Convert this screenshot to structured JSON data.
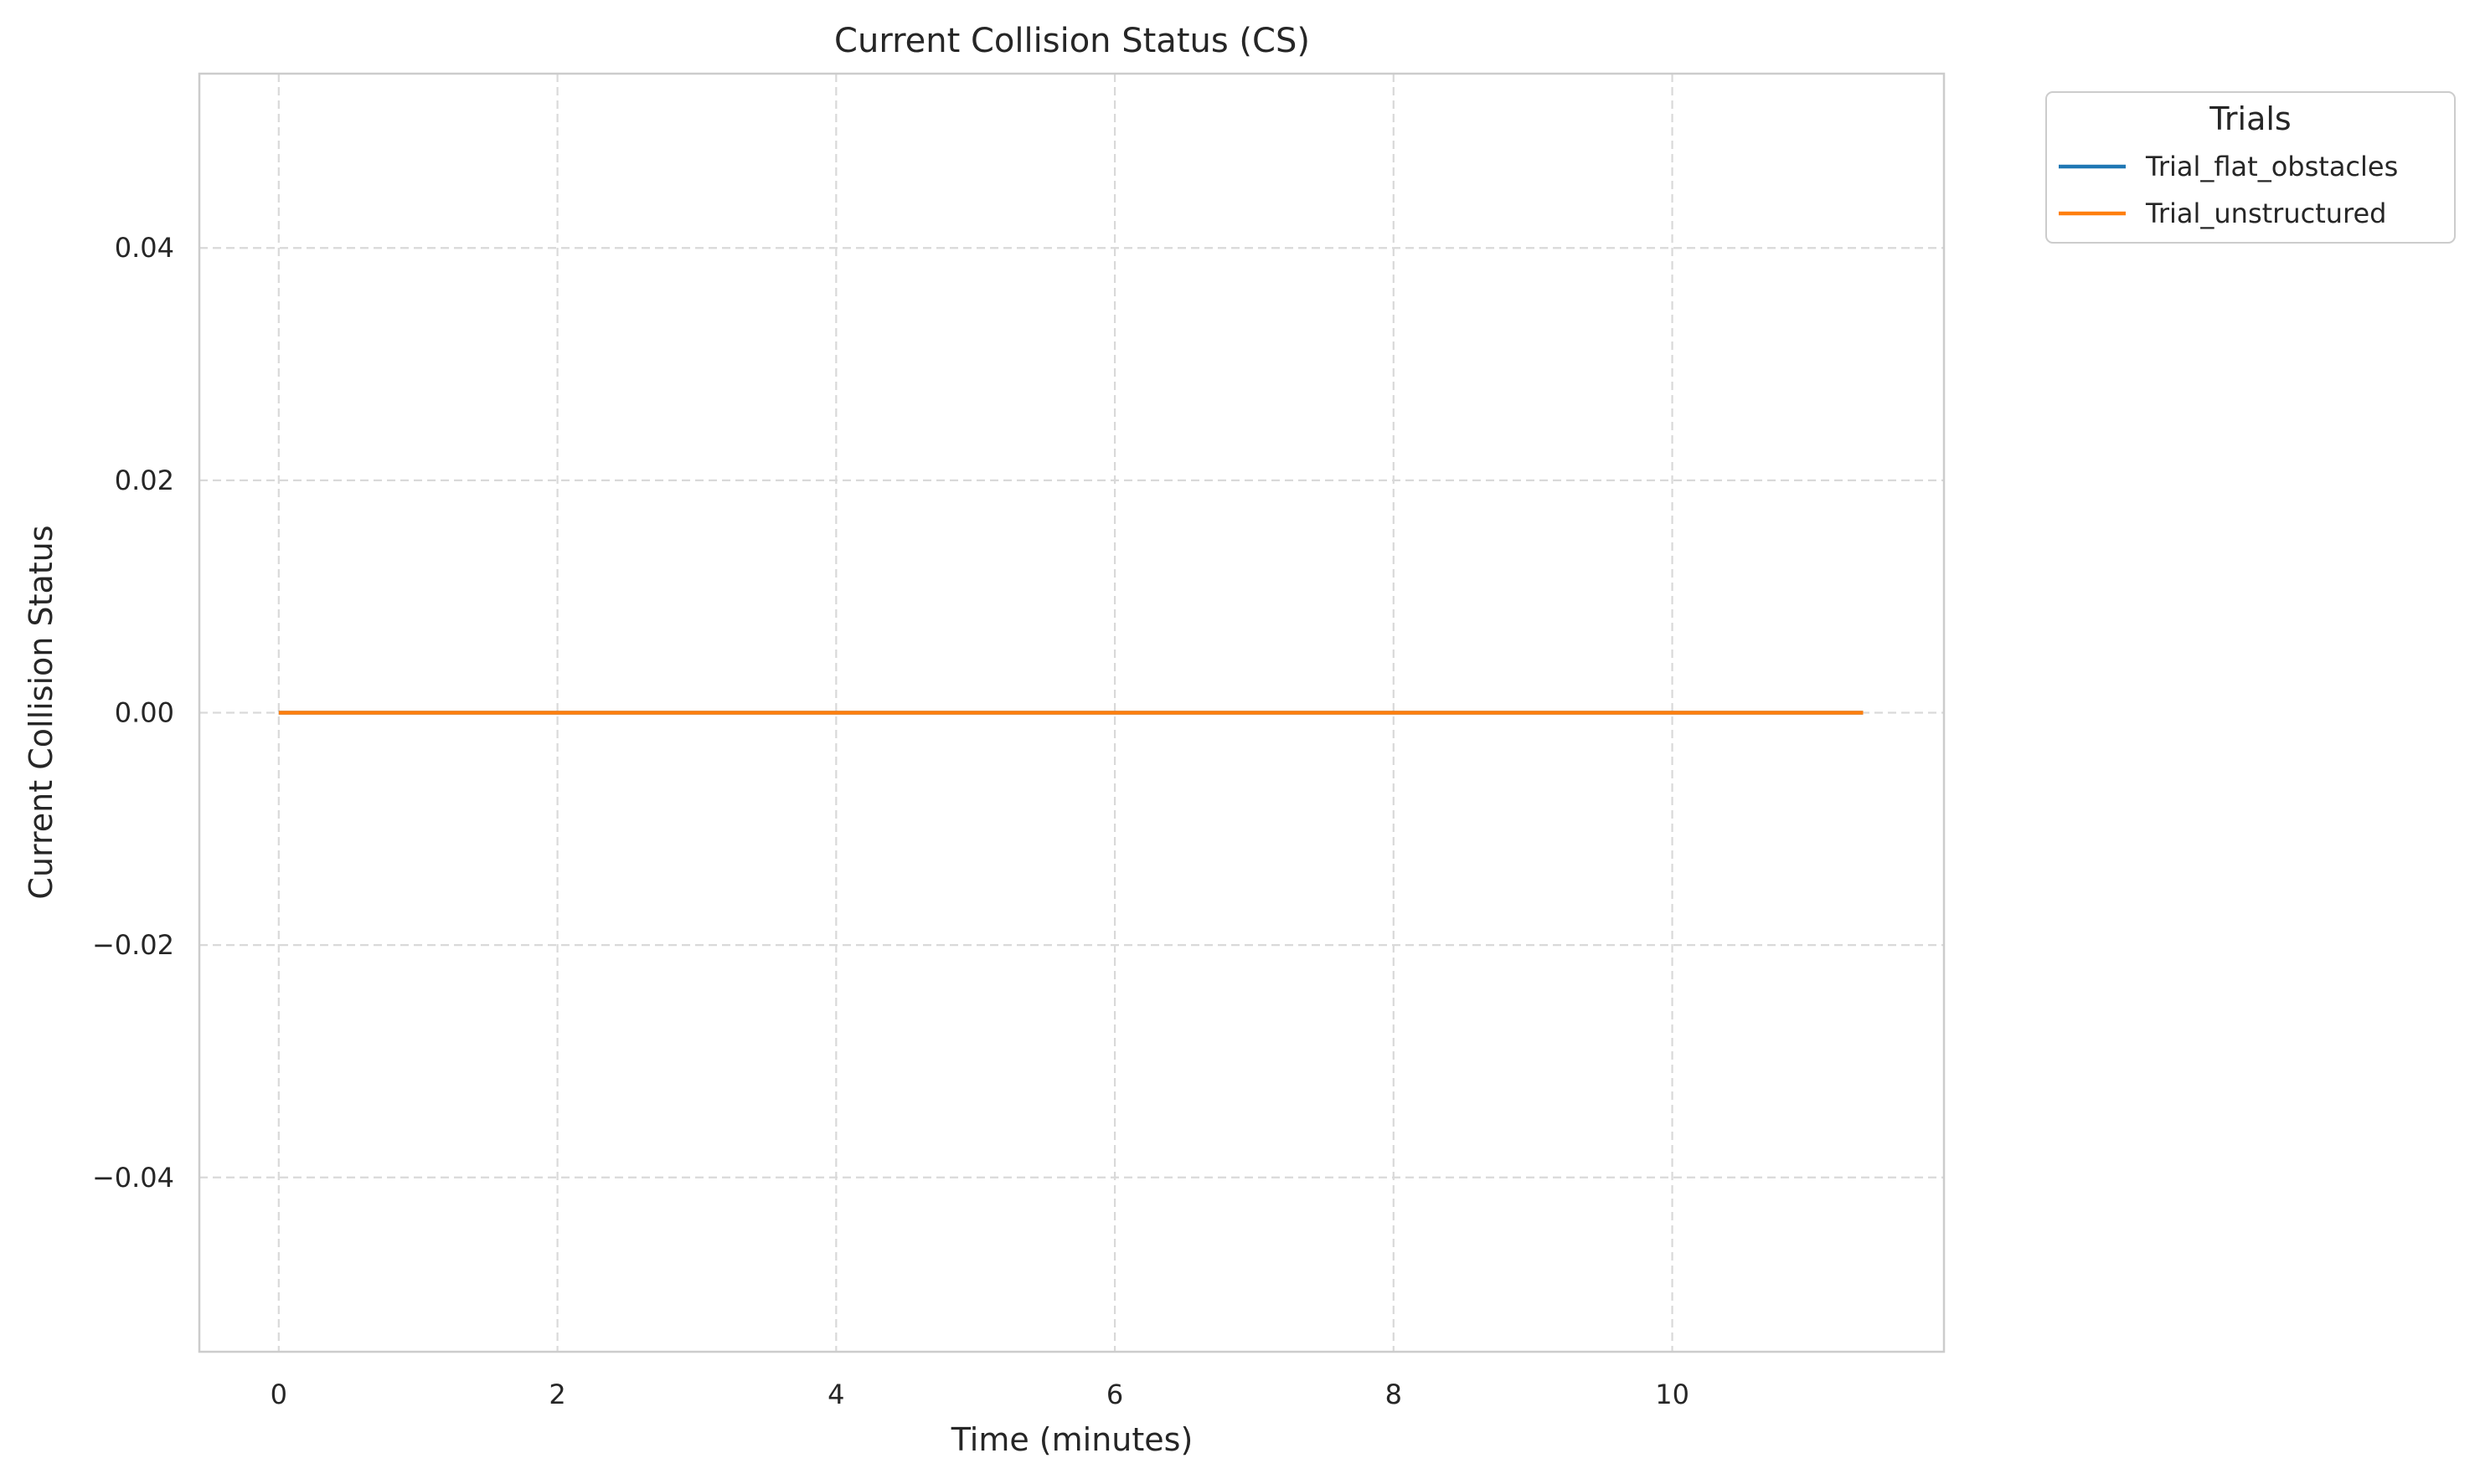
{
  "chart_data": {
    "type": "line",
    "title": "Current Collision Status (CS)",
    "xlabel": "Time (minutes)",
    "ylabel": "Current Collision Status",
    "xlim": [
      -0.57,
      11.95
    ],
    "ylim": [
      -0.055,
      0.055
    ],
    "xticks": [
      0,
      2,
      4,
      6,
      8,
      10
    ],
    "yticks": [
      -0.04,
      -0.02,
      0.0,
      0.02,
      0.04
    ],
    "xtick_labels": [
      "0",
      "2",
      "4",
      "6",
      "8",
      "10"
    ],
    "ytick_labels": [
      "−0.04",
      "−0.02",
      "0.00",
      "0.02",
      "0.04"
    ],
    "grid": true,
    "legend": {
      "title": "Trials",
      "placement": "outside-top-right"
    },
    "series": [
      {
        "name": "Trial_flat_obstacles",
        "color": "#1f77b4",
        "x": [
          0,
          11.37
        ],
        "y": [
          0,
          0
        ]
      },
      {
        "name": "Trial_unstructured",
        "color": "#ff7f0e",
        "x": [
          0,
          11.37
        ],
        "y": [
          0,
          0
        ]
      }
    ]
  }
}
